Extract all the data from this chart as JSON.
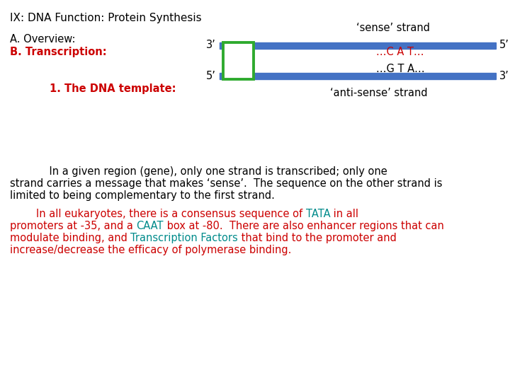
{
  "title": "IX: DNA Function: Protein Synthesis",
  "overview_label": "A. Overview:",
  "transcription_label": "B. Transcription:",
  "dna_template_label": "1. The DNA template:",
  "sense_label": "‘sense’ strand",
  "antisense_label": "‘anti-sense’ strand",
  "cat_text": "…C A T…",
  "gta_text": "…G T A…",
  "three_prime_top": "3’",
  "five_prime_top": "5’",
  "five_prime_bottom": "5’",
  "three_prime_bottom": "3’",
  "strand_color": "#4472C4",
  "box_color": "#2EAA2E",
  "black": "#000000",
  "red_color": "#cc0000",
  "teal_color": "#008B8B",
  "background": "#ffffff",
  "para1_line1": "            In a given region (gene), only one strand is transcribed; only one",
  "para1_line2": "strand carries a message that makes ‘sense’.  The sequence on the other strand is",
  "para1_line3": "limited to being complementary to the first strand.",
  "p2_prefix": "        In all eukaryotes, there is a consensus sequence of ",
  "p2_TATA": "TATA",
  "p2_suffix": " in all",
  "p3_prefix": "promoters at -35, and a ",
  "p3_CAAT": "CAAT",
  "p3_suffix": " box at -80.  There are also enhancer regions that can",
  "p4_prefix": "modulate binding, and ",
  "p4_TF": "Transcription Factors",
  "p4_suffix": " that bind to the promoter and",
  "p5": "increase/decrease the efficacy of polymerase binding."
}
